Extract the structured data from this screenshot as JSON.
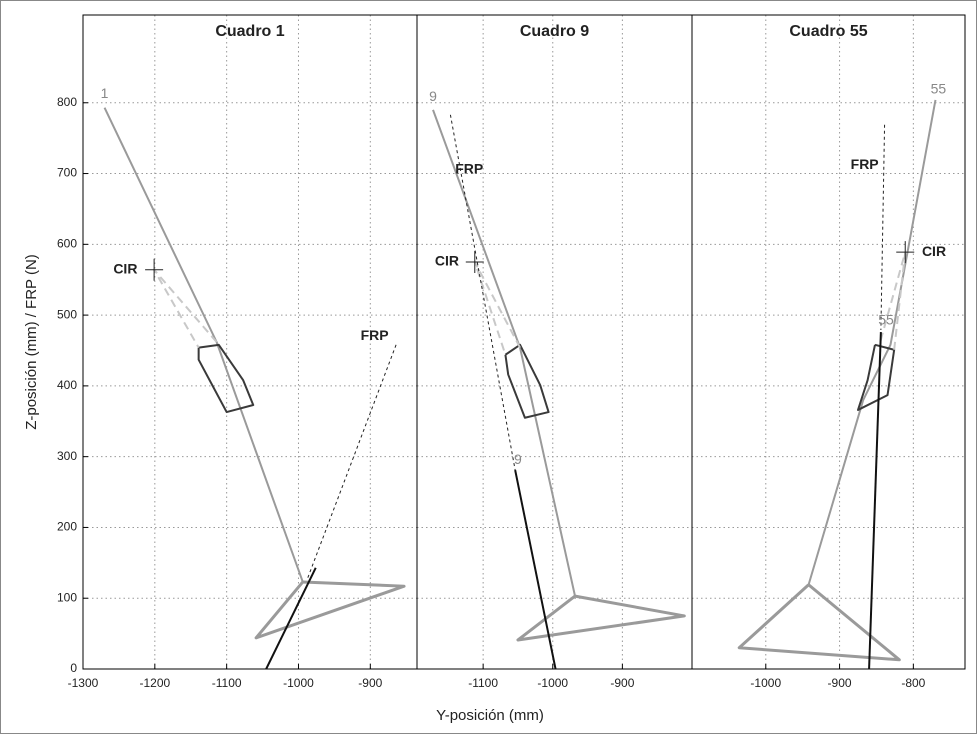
{
  "chart_data": [
    {
      "type": "line",
      "title": "Cuadro 1",
      "ylabel": "Z-posición (mm) / FRP (N)",
      "xlim": [
        -1300,
        -835
      ],
      "ylim": [
        0,
        924
      ],
      "xticks": [
        -1300,
        -1200,
        -1100,
        -1000,
        -900
      ],
      "yticks": [
        0,
        100,
        200,
        300,
        400,
        500,
        600,
        700,
        800
      ],
      "grid": true,
      "series": [
        {
          "color": "#9a9a9a",
          "width": 2,
          "style": "solid",
          "x": [
            -1270,
            -1114,
            -994
          ],
          "y": [
            793,
            462,
            123
          ]
        },
        {
          "color": "#9a9a9a",
          "width": 3,
          "style": "solid",
          "x": [
            -994,
            -1059,
            -853,
            -994
          ],
          "y": [
            123,
            44,
            117,
            123
          ]
        },
        {
          "color": "#3a3a3a",
          "width": 2,
          "style": "solid",
          "x": [
            -1139,
            -1111,
            -1077,
            -1063,
            -1100,
            -1139,
            -1139
          ],
          "y": [
            454,
            458,
            408,
            373,
            363,
            437,
            454
          ]
        },
        {
          "color": "#c8c8c8",
          "width": 2,
          "style": "dashed",
          "x": [
            -1114,
            -1201,
            -1139
          ],
          "y": [
            462,
            564,
            454
          ]
        },
        {
          "color": "#222222",
          "width": 1,
          "style": "dashed",
          "x": [
            -987,
            -863
          ],
          "y": [
            129,
            461
          ]
        },
        {
          "color": "#111111",
          "width": 2,
          "style": "solid",
          "x": [
            -1045,
            -976
          ],
          "y": [
            0,
            143
          ]
        },
        {
          "color": "#222222",
          "width": 1,
          "style": "solid",
          "marker": "plus",
          "x": [
            -1201
          ],
          "y": [
            564
          ]
        }
      ],
      "annotations": [
        {
          "text": "1",
          "x": -1270,
          "y": 812,
          "color": "#888888",
          "bold": false
        },
        {
          "text": "CIR",
          "x": -1241,
          "y": 564,
          "color": "#222222",
          "bold": true
        },
        {
          "text": "FRP",
          "x": -894,
          "y": 470,
          "color": "#222222",
          "bold": true
        }
      ]
    },
    {
      "type": "line",
      "title": "Cuadro  9",
      "xlabel": "Y-posición (mm)",
      "xlim": [
        -1195,
        -800
      ],
      "ylim": [
        0,
        924
      ],
      "xticks": [
        -1100,
        -1000,
        -900
      ],
      "yticks": [
        0,
        100,
        200,
        300,
        400,
        500,
        600,
        700,
        800
      ],
      "grid": true,
      "series": [
        {
          "color": "#9a9a9a",
          "width": 2,
          "style": "solid",
          "x": [
            -1172,
            -1047,
            -968
          ],
          "y": [
            790,
            454,
            103
          ]
        },
        {
          "color": "#9a9a9a",
          "width": 3,
          "style": "solid",
          "x": [
            -968,
            -1050,
            -811,
            -968
          ],
          "y": [
            103,
            41,
            75,
            103
          ]
        },
        {
          "color": "#3a3a3a",
          "width": 2,
          "style": "solid",
          "x": [
            -1068,
            -1047,
            -1018,
            -1006,
            -1040,
            -1064,
            -1068
          ],
          "y": [
            444,
            458,
            401,
            363,
            355,
            416,
            444
          ]
        },
        {
          "color": "#c8c8c8",
          "width": 2,
          "style": "dashed",
          "x": [
            -1047,
            -1112,
            -1068
          ],
          "y": [
            454,
            575,
            444
          ]
        },
        {
          "color": "#222222",
          "width": 1,
          "style": "dashed",
          "x": [
            -1147,
            -1054
          ],
          "y": [
            783,
            281
          ]
        },
        {
          "color": "#111111",
          "width": 2,
          "style": "solid",
          "x": [
            -1054,
            -996
          ],
          "y": [
            281,
            0
          ]
        },
        {
          "color": "#222222",
          "width": 1,
          "style": "solid",
          "marker": "plus",
          "x": [
            -1112
          ],
          "y": [
            575
          ]
        }
      ],
      "annotations": [
        {
          "text": "9",
          "x": -1172,
          "y": 808,
          "color": "#888888",
          "bold": false
        },
        {
          "text": "9",
          "x": -1050,
          "y": 295,
          "color": "#888888",
          "bold": false
        },
        {
          "text": "CIR",
          "x": -1152,
          "y": 575,
          "color": "#222222",
          "bold": true
        },
        {
          "text": "FRP",
          "x": -1120,
          "y": 705,
          "color": "#222222",
          "bold": true
        }
      ]
    },
    {
      "type": "line",
      "title": "Cuadro  55",
      "xlim": [
        -1100,
        -730
      ],
      "ylim": [
        0,
        924
      ],
      "xticks": [
        -1000,
        -900,
        -800
      ],
      "yticks": [
        0,
        100,
        200,
        300,
        400,
        500,
        600,
        700,
        800
      ],
      "grid": true,
      "series": [
        {
          "color": "#9a9a9a",
          "width": 2,
          "style": "solid",
          "x": [
            -770,
            -831,
            -868,
            -942
          ],
          "y": [
            804,
            458,
            380,
            119
          ]
        },
        {
          "color": "#9a9a9a",
          "width": 3,
          "style": "solid",
          "x": [
            -942,
            -1036,
            -819,
            -942
          ],
          "y": [
            119,
            30,
            13,
            119
          ]
        },
        {
          "color": "#3a3a3a",
          "width": 2,
          "style": "solid",
          "x": [
            -852,
            -826,
            -835,
            -875,
            -862,
            -852
          ],
          "y": [
            458,
            451,
            387,
            366,
            408,
            458
          ]
        },
        {
          "color": "#c8c8c8",
          "width": 2,
          "style": "dashed",
          "x": [
            -826,
            -811,
            -846
          ],
          "y": [
            451,
            589,
            458
          ]
        },
        {
          "color": "#222222",
          "width": 1,
          "style": "dashed",
          "x": [
            -839,
            -844
          ],
          "y": [
            769,
            479
          ]
        },
        {
          "color": "#111111",
          "width": 2,
          "style": "solid",
          "x": [
            -844,
            -860
          ],
          "y": [
            476,
            0
          ]
        },
        {
          "color": "#222222",
          "width": 1,
          "style": "solid",
          "marker": "plus",
          "x": [
            -811
          ],
          "y": [
            589
          ]
        }
      ],
      "annotations": [
        {
          "text": "55",
          "x": -766,
          "y": 818,
          "color": "#888888",
          "bold": false
        },
        {
          "text": "55",
          "x": -837,
          "y": 492,
          "color": "#888888",
          "bold": false
        },
        {
          "text": "CIR",
          "x": -772,
          "y": 589,
          "color": "#222222",
          "bold": true
        },
        {
          "text": "FRP",
          "x": -866,
          "y": 712,
          "color": "#222222",
          "bold": true
        }
      ]
    }
  ]
}
